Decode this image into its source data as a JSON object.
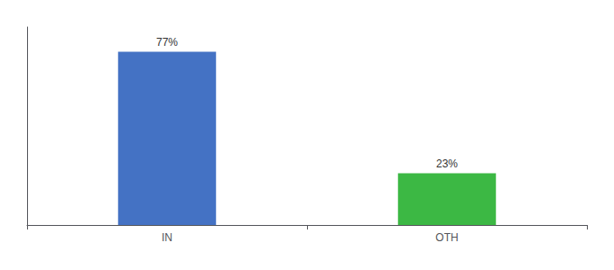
{
  "chart_data": {
    "type": "bar",
    "categories": [
      "IN",
      "OTH"
    ],
    "values": [
      77,
      23
    ],
    "value_labels": [
      "77%",
      "23%"
    ],
    "colors": [
      "#4472c4",
      "#3cb844"
    ],
    "ylim": [
      0,
      88
    ],
    "tick_labels": "x",
    "grid": false,
    "data_labels": true
  }
}
